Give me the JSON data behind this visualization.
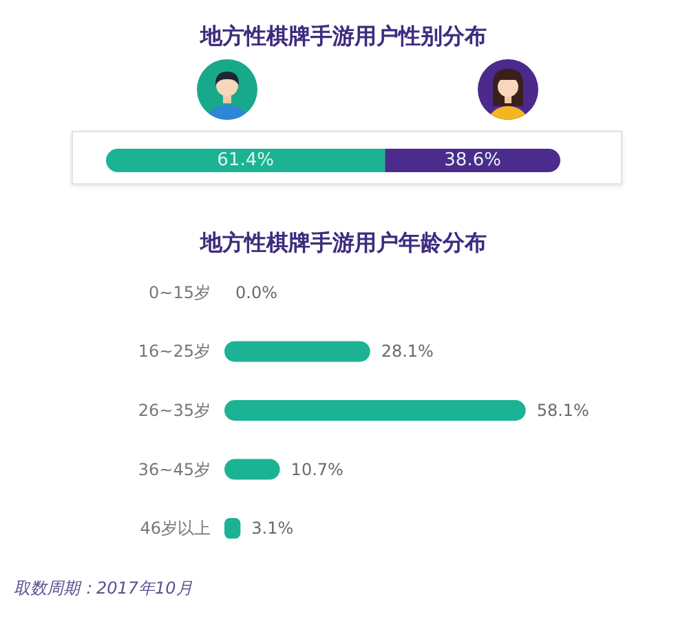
{
  "chart_data": [
    {
      "type": "bar",
      "title": "地方性棋牌手游用户性别分布",
      "categories": [
        null
      ],
      "orientation": "horizontal",
      "stacked": true,
      "tick_labels": false,
      "series": [
        {
          "color": "#1bb393",
          "values": [
            61.4
          ],
          "value_labels": [
            "61.4%"
          ]
        },
        {
          "color": "#4b2b8c",
          "values": [
            38.6
          ],
          "value_labels": [
            "38.6%"
          ]
        }
      ]
    },
    {
      "type": "bar",
      "title": "地方性棋牌手游用户年龄分布",
      "categories": [
        "0~15岁",
        "16~25岁",
        "26~35岁",
        "36~45岁",
        "46岁以上"
      ],
      "orientation": "horizontal",
      "tick_labels": "y",
      "values": [
        0.0,
        28.1,
        58.1,
        10.7,
        3.1
      ],
      "value_labels": [
        "0.0%",
        "28.1%",
        "58.1%",
        "10.7%",
        "3.1%"
      ],
      "color": "#1bb393",
      "annotations": [
        "取数周期：2017年10月"
      ]
    }
  ]
}
